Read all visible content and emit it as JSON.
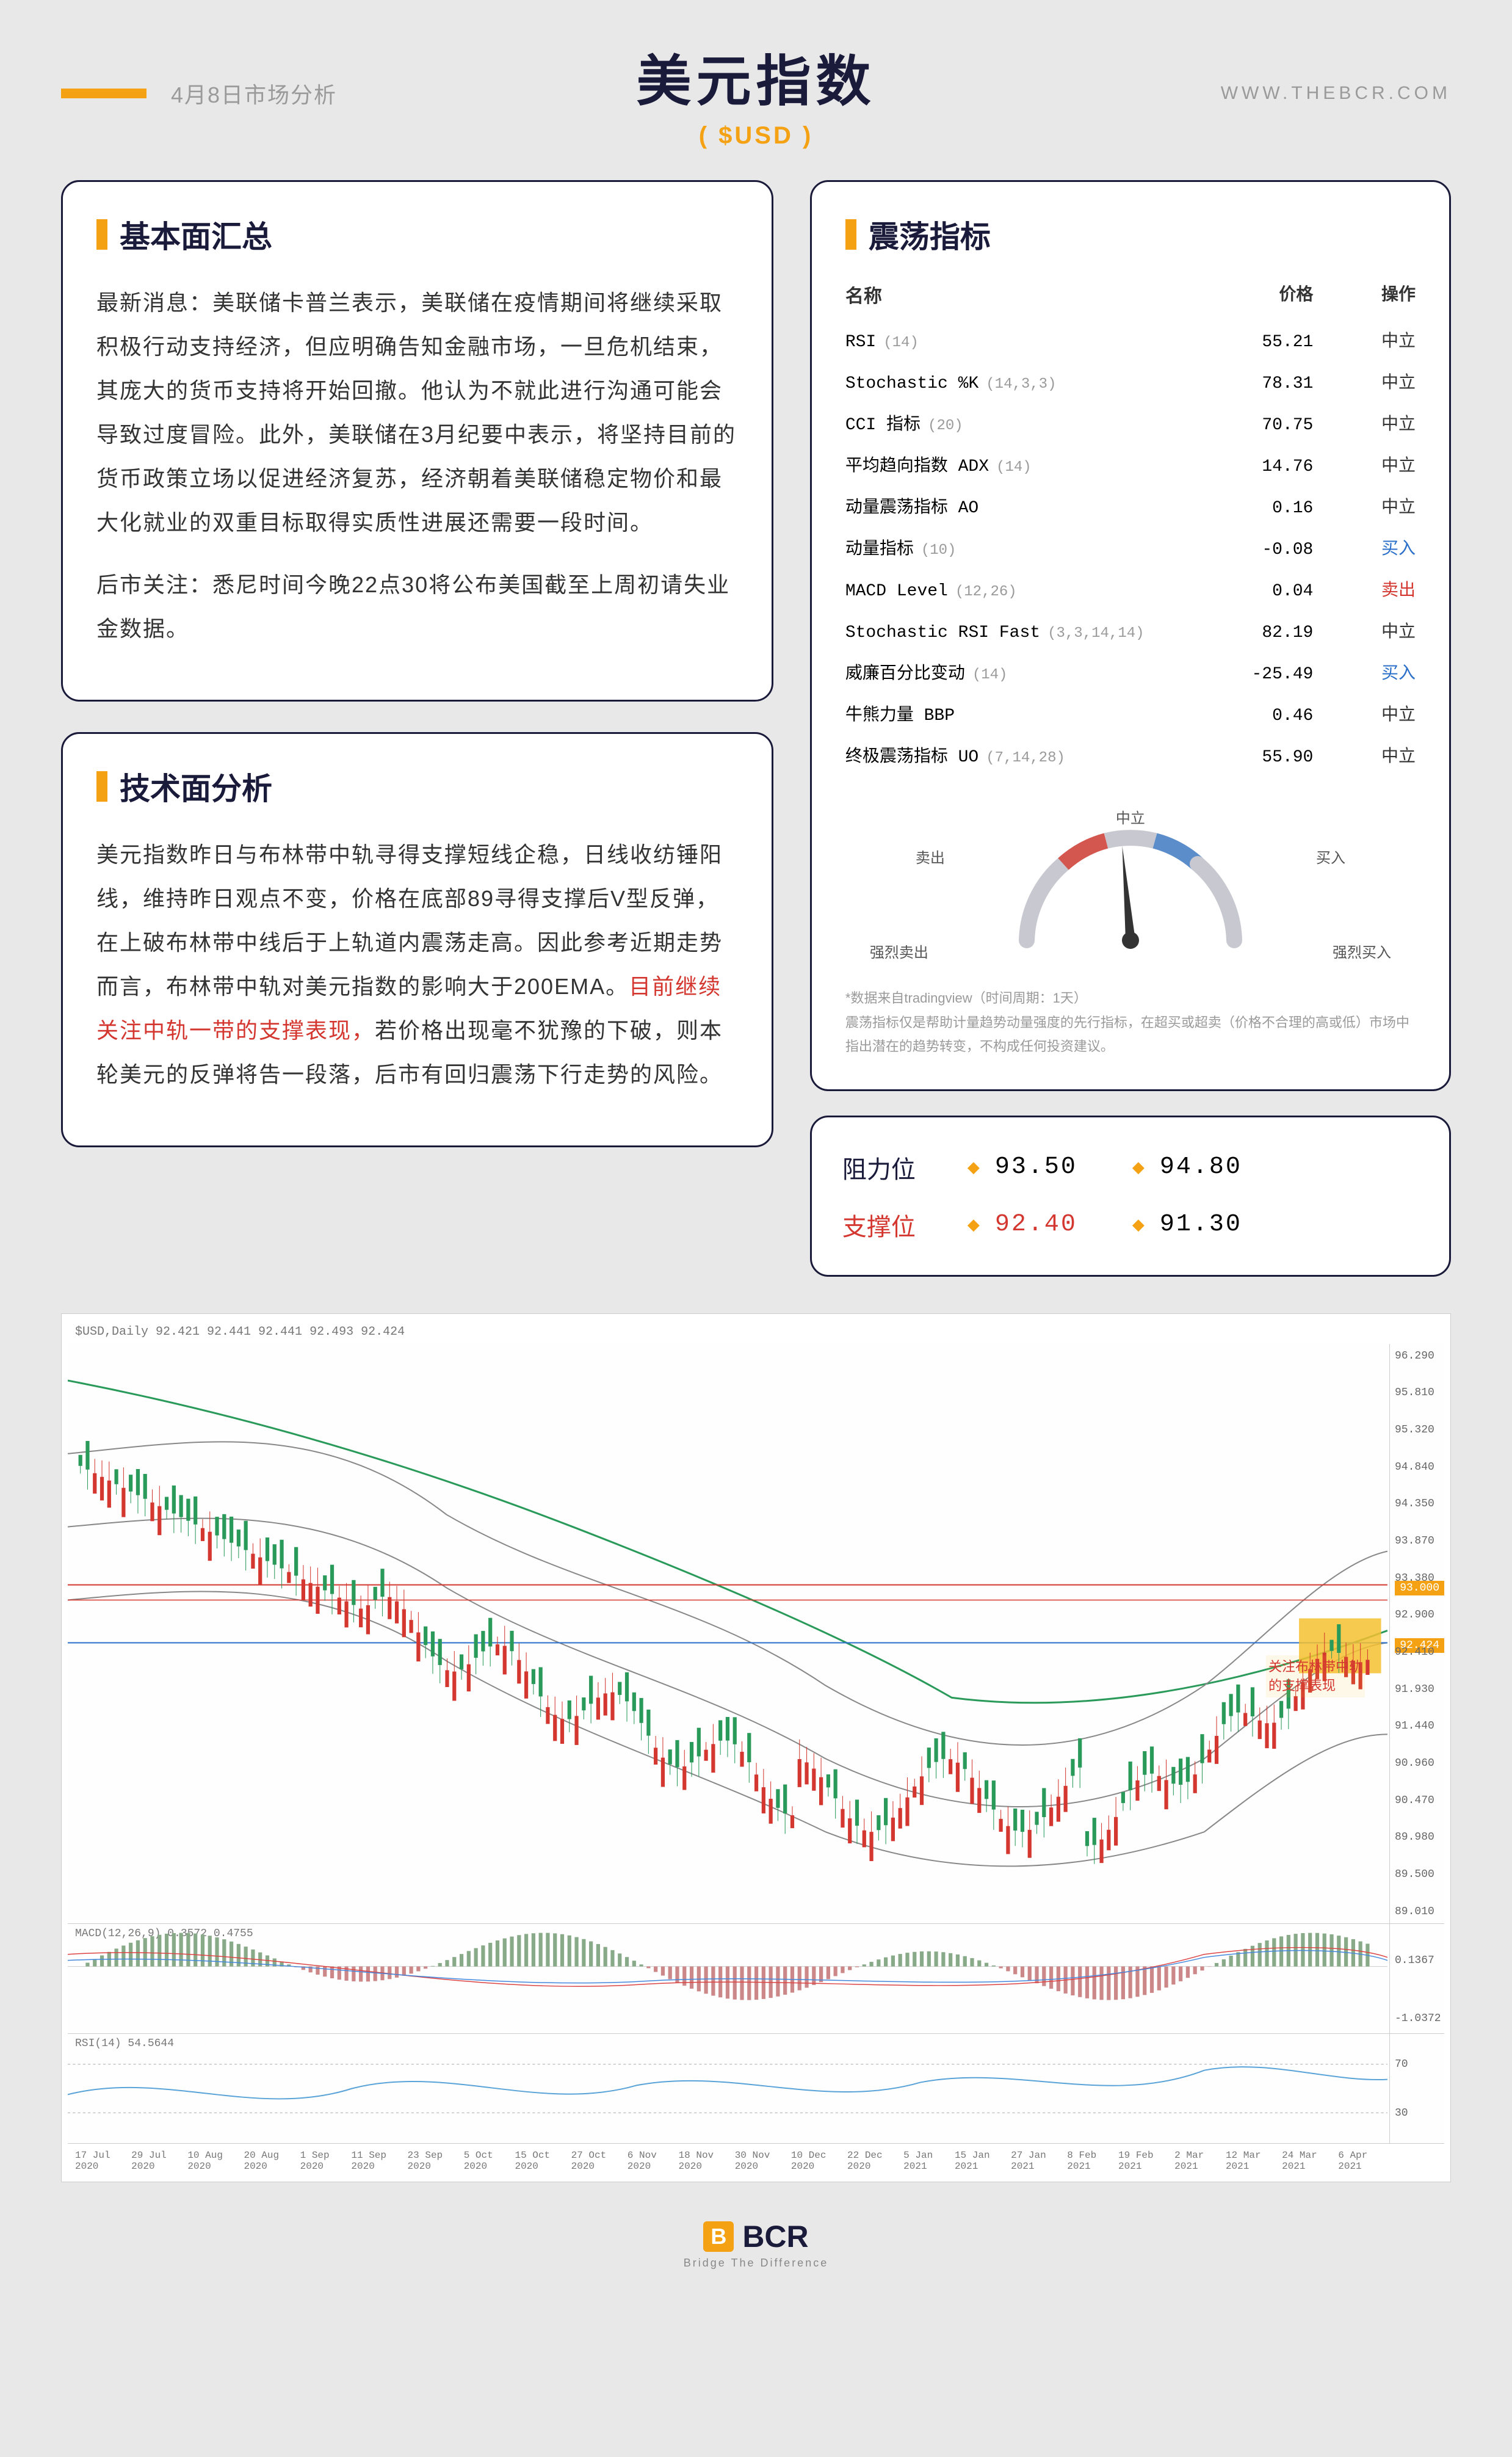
{
  "header": {
    "date_label": "4月8日市场分析",
    "main_title": "美元指数",
    "subtitle": "( $USD )",
    "url": "WWW.THEBCR.COM"
  },
  "fundamentals": {
    "title": "基本面汇总",
    "p1": "最新消息：美联储卡普兰表示，美联储在疫情期间将继续采取积极行动支持经济，但应明确告知金融市场，一旦危机结束，其庞大的货币支持将开始回撤。他认为不就此进行沟通可能会导致过度冒险。此外，美联储在3月纪要中表示，将坚持目前的货币政策立场以促进经济复苏，经济朝着美联储稳定物价和最大化就业的双重目标取得实质性进展还需要一段时间。",
    "p2": "后市关注：悉尼时间今晚22点30将公布美国截至上周初请失业金数据。"
  },
  "technicals": {
    "title": "技术面分析",
    "text_pre": "美元指数昨日与布林带中轨寻得支撑短线企稳，日线收纺锤阳线，维持昨日观点不变，价格在底部89寻得支撑后V型反弹，在上破布林带中线后于上轨道内震荡走高。因此参考近期走势而言，布林带中轨对美元指数的影响大于200EMA。",
    "text_red": "目前继续关注中轨一带的支撑表现，",
    "text_post": "若价格出现毫不犹豫的下破，则本轮美元的反弹将告一段落，后市有回归震荡下行走势的风险。"
  },
  "oscillators": {
    "title": "震荡指标",
    "headers": {
      "name": "名称",
      "price": "价格",
      "action": "操作"
    },
    "rows": [
      {
        "name": "RSI",
        "param": "(14)",
        "price": "55.21",
        "action": "中立",
        "cls": "neutral"
      },
      {
        "name": "Stochastic %K",
        "param": "(14,3,3)",
        "price": "78.31",
        "action": "中立",
        "cls": "neutral"
      },
      {
        "name": "CCI 指标",
        "param": "(20)",
        "price": "70.75",
        "action": "中立",
        "cls": "neutral"
      },
      {
        "name": "平均趋向指数 ADX",
        "param": "(14)",
        "price": "14.76",
        "action": "中立",
        "cls": "neutral"
      },
      {
        "name": "动量震荡指标 AO",
        "param": "",
        "price": "0.16",
        "action": "中立",
        "cls": "neutral"
      },
      {
        "name": "动量指标",
        "param": "(10)",
        "price": "-0.08",
        "action": "买入",
        "cls": "buy"
      },
      {
        "name": "MACD Level",
        "param": "(12,26)",
        "price": "0.04",
        "action": "卖出",
        "cls": "sell"
      },
      {
        "name": "Stochastic RSI Fast",
        "param": "(3,3,14,14)",
        "price": "82.19",
        "action": "中立",
        "cls": "neutral"
      },
      {
        "name": "威廉百分比变动",
        "param": "(14)",
        "price": "-25.49",
        "action": "买入",
        "cls": "buy"
      },
      {
        "name": "牛熊力量 BBP",
        "param": "",
        "price": "0.46",
        "action": "中立",
        "cls": "neutral"
      },
      {
        "name": "终极震荡指标 UO",
        "param": "(7,14,28)",
        "price": "55.90",
        "action": "中立",
        "cls": "neutral"
      }
    ],
    "gauge": {
      "labels": {
        "strong_sell": "强烈卖出",
        "sell": "卖出",
        "neutral": "中立",
        "buy": "买入",
        "strong_buy": "强烈买入"
      },
      "needle_angle": -5,
      "arc_sell_color": "#d4574f",
      "arc_neutral_color": "#c8c8d0",
      "arc_buy_color": "#5a8dc9"
    },
    "note1": "*数据来自tradingview（时间周期：1天）",
    "note2": "震荡指标仅是帮助计量趋势动量强度的先行指标，在超买或超卖（价格不合理的高或低）市场中指出潜在的趋势转变，不构成任何投资建议。"
  },
  "levels": {
    "resistance_label": "阻力位",
    "support_label": "支撑位",
    "r1": "93.50",
    "r2": "94.80",
    "s1": "92.40",
    "s2": "91.30"
  },
  "chart": {
    "info_bar": "$USD,Daily  92.421 92.441 92.441 92.493 92.424",
    "y_ticks": [
      "96.290",
      "95.810",
      "95.320",
      "94.840",
      "94.350",
      "93.870",
      "93.380",
      "92.900",
      "92.410",
      "91.930",
      "91.440",
      "90.960",
      "90.470",
      "89.980",
      "89.500",
      "89.010"
    ],
    "price_tag_top": "93.000",
    "price_tag_mid": "92.424",
    "annotation_l1": "关注布林带中轨",
    "annotation_l2": "的支撑表现",
    "macd_label": "MACD(12,26,9) 0.3572 0.4755",
    "macd_ticks": [
      "0.1367",
      "-1.0372"
    ],
    "rsi_label": "RSI(14) 54.5644",
    "rsi_ticks": [
      "70",
      "30"
    ],
    "x_dates": [
      "17 Jul 2020",
      "29 Jul 2020",
      "10 Aug 2020",
      "20 Aug 2020",
      "1 Sep 2020",
      "11 Sep 2020",
      "23 Sep 2020",
      "5 Oct 2020",
      "15 Oct 2020",
      "27 Oct 2020",
      "6 Nov 2020",
      "18 Nov 2020",
      "30 Nov 2020",
      "10 Dec 2020",
      "22 Dec 2020",
      "5 Jan 2021",
      "15 Jan 2021",
      "27 Jan 2021",
      "8 Feb 2021",
      "19 Feb 2021",
      "2 Mar 2021",
      "12 Mar 2021",
      "24 Mar 2021",
      "6 Apr 2021"
    ],
    "main_curve_color": "#2a9a5a",
    "bollinger_color": "#888888",
    "red_line_color": "#d4372f",
    "blue_line_color": "#2a6fc9",
    "candle_up": "#2a9a5a",
    "candle_down": "#d4372f",
    "highlight_box_color": "#f4c030"
  },
  "footer": {
    "brand": "BCR",
    "tagline": "Bridge The Difference"
  }
}
